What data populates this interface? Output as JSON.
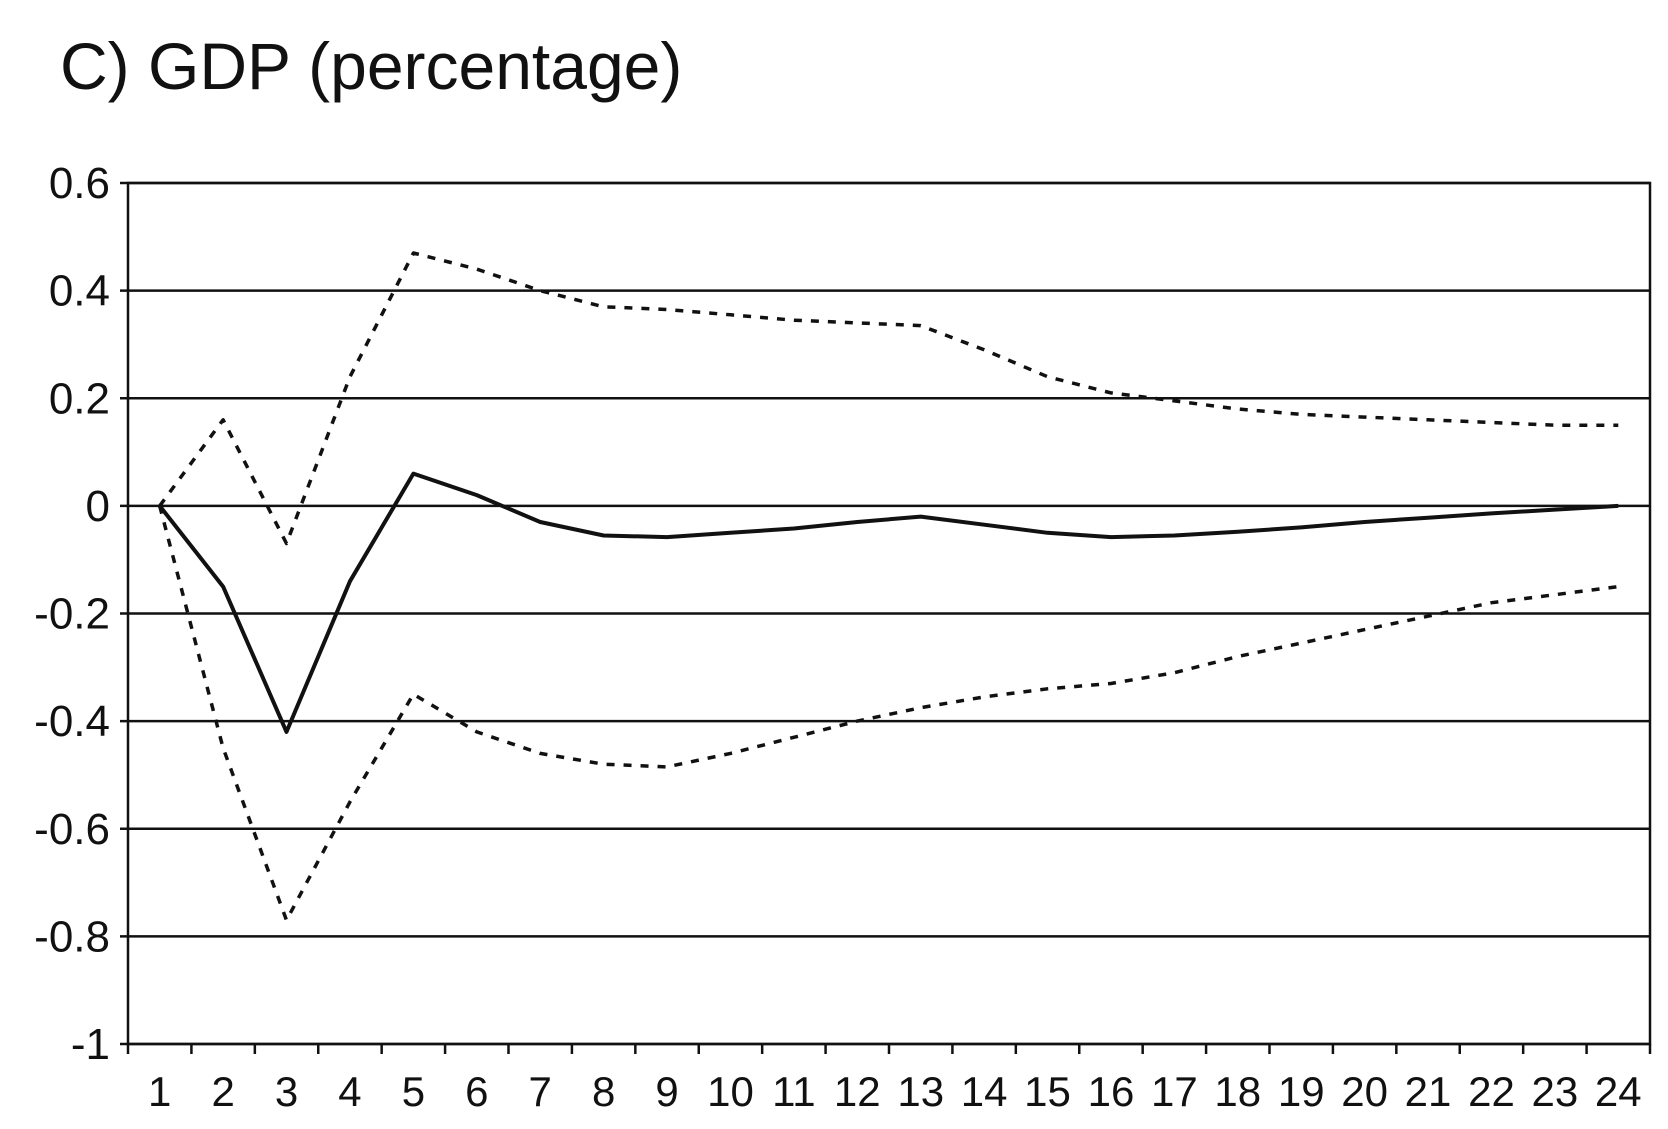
{
  "chart_data": {
    "type": "line",
    "title": "C) GDP (percentage)",
    "x": [
      1,
      2,
      3,
      4,
      5,
      6,
      7,
      8,
      9,
      10,
      11,
      12,
      13,
      14,
      15,
      16,
      17,
      18,
      19,
      20,
      21,
      22,
      23,
      24
    ],
    "ylim": [
      -1,
      0.6
    ],
    "yticks": [
      0.6,
      0.4,
      0.2,
      0,
      -0.2,
      -0.4,
      -0.6,
      -0.8,
      -1
    ],
    "ytick_labels": [
      "0.6",
      "0.4",
      "0.2",
      "0",
      "-0.2",
      "-0.4",
      "-0.6",
      "-0.8",
      "-1"
    ],
    "xtick_labels": [
      "1",
      "2",
      "3",
      "4",
      "5",
      "6",
      "7",
      "8",
      "9",
      "10",
      "11",
      "12",
      "13",
      "14",
      "15",
      "16",
      "17",
      "18",
      "19",
      "20",
      "21",
      "22",
      "23",
      "24"
    ],
    "grid": "horizontal",
    "series": [
      {
        "style": "solid",
        "values": [
          0,
          -0.15,
          -0.42,
          -0.14,
          0.06,
          0.02,
          -0.03,
          -0.055,
          -0.058,
          -0.05,
          -0.042,
          -0.03,
          -0.02,
          -0.035,
          -0.05,
          -0.058,
          -0.055,
          -0.048,
          -0.04,
          -0.03,
          -0.022,
          -0.014,
          -0.007,
          0
        ]
      },
      {
        "style": "dotted",
        "values": [
          0,
          0.16,
          -0.07,
          0.24,
          0.47,
          0.44,
          0.4,
          0.37,
          0.365,
          0.355,
          0.345,
          0.34,
          0.335,
          0.29,
          0.24,
          0.21,
          0.195,
          0.18,
          0.17,
          0.165,
          0.16,
          0.155,
          0.15,
          0.15
        ]
      },
      {
        "style": "dotted",
        "values": [
          0,
          -0.45,
          -0.77,
          -0.55,
          -0.35,
          -0.42,
          -0.46,
          -0.48,
          -0.485,
          -0.46,
          -0.43,
          -0.4,
          -0.375,
          -0.355,
          -0.34,
          -0.33,
          -0.31,
          -0.28,
          -0.255,
          -0.23,
          -0.205,
          -0.18,
          -0.165,
          -0.15
        ]
      }
    ],
    "colors": {
      "line": "#111111",
      "axis": "#111111",
      "grid": "#111111"
    }
  }
}
